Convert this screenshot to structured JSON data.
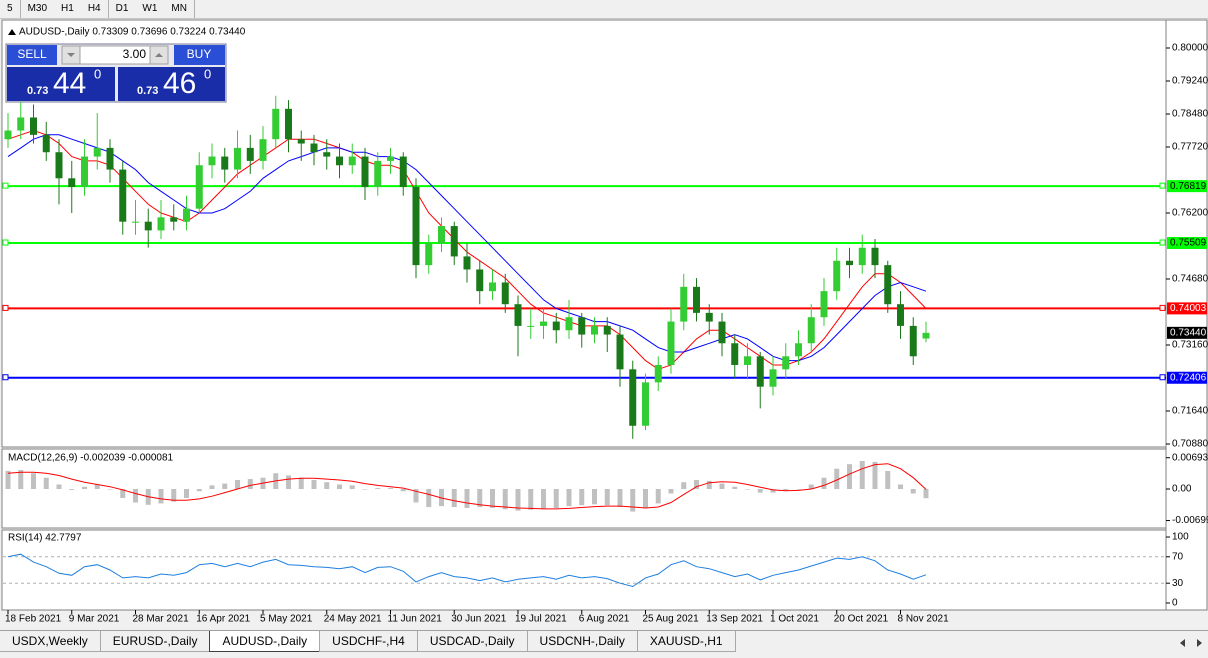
{
  "toolbar": {
    "timeframes": [
      "5",
      "M30",
      "H1",
      "H4",
      "D1",
      "W1",
      "MN"
    ]
  },
  "trade_panel": {
    "sell": "SELL",
    "buy": "BUY",
    "lots": "3.00",
    "sell_price": {
      "prefix": "0.73",
      "big": "44",
      "sup": "0"
    },
    "buy_price": {
      "prefix": "0.73",
      "big": "46",
      "sup": "0"
    }
  },
  "chart_data": [
    {
      "type": "candlestick",
      "title": "AUDUSD-,Daily 0.73309 0.73696 0.73224 0.73440",
      "categories": [
        "18 Feb 2021",
        null,
        null,
        null,
        null,
        "9 Mar 2021",
        null,
        null,
        null,
        null,
        "28 Mar 2021",
        null,
        null,
        null,
        null,
        "16 Apr 2021",
        null,
        null,
        null,
        null,
        "5 May 2021",
        null,
        null,
        null,
        null,
        "24 May 2021",
        null,
        null,
        null,
        null,
        "11 Jun 2021",
        null,
        null,
        null,
        null,
        "30 Jun 2021",
        null,
        null,
        null,
        null,
        "19 Jul 2021",
        null,
        null,
        null,
        null,
        "6 Aug 2021",
        null,
        null,
        null,
        null,
        "25 Aug 2021",
        null,
        null,
        null,
        null,
        "13 Sep 2021",
        null,
        null,
        null,
        null,
        "1 Oct 2021",
        null,
        null,
        null,
        null,
        "20 Oct 2021",
        null,
        null,
        null,
        null,
        "8 Nov 2021",
        null,
        null
      ],
      "candles": [
        [
          0.779,
          0.785,
          0.777,
          0.781
        ],
        [
          0.781,
          0.788,
          0.779,
          0.784
        ],
        [
          0.784,
          0.787,
          0.778,
          0.78
        ],
        [
          0.78,
          0.783,
          0.774,
          0.776
        ],
        [
          0.776,
          0.779,
          0.764,
          0.77
        ],
        [
          0.77,
          0.774,
          0.762,
          0.768
        ],
        [
          0.768,
          0.779,
          0.766,
          0.775
        ],
        [
          0.775,
          0.785,
          0.772,
          0.777
        ],
        [
          0.777,
          0.779,
          0.769,
          0.772
        ],
        [
          0.772,
          0.774,
          0.757,
          0.76
        ],
        [
          0.76,
          0.765,
          0.757,
          0.76
        ],
        [
          0.76,
          0.763,
          0.754,
          0.758
        ],
        [
          0.758,
          0.765,
          0.756,
          0.761
        ],
        [
          0.761,
          0.764,
          0.758,
          0.76
        ],
        [
          0.76,
          0.766,
          0.758,
          0.763
        ],
        [
          0.763,
          0.776,
          0.762,
          0.773
        ],
        [
          0.773,
          0.778,
          0.77,
          0.775
        ],
        [
          0.775,
          0.777,
          0.769,
          0.772
        ],
        [
          0.772,
          0.781,
          0.77,
          0.777
        ],
        [
          0.777,
          0.78,
          0.771,
          0.774
        ],
        [
          0.774,
          0.782,
          0.772,
          0.779
        ],
        [
          0.779,
          0.789,
          0.777,
          0.786
        ],
        [
          0.786,
          0.788,
          0.776,
          0.779
        ],
        [
          0.779,
          0.781,
          0.774,
          0.778
        ],
        [
          0.778,
          0.78,
          0.773,
          0.776
        ],
        [
          0.776,
          0.779,
          0.772,
          0.775
        ],
        [
          0.775,
          0.778,
          0.77,
          0.773
        ],
        [
          0.773,
          0.778,
          0.771,
          0.775
        ],
        [
          0.775,
          0.777,
          0.765,
          0.768
        ],
        [
          0.768,
          0.776,
          0.766,
          0.774
        ],
        [
          0.774,
          0.777,
          0.771,
          0.775
        ],
        [
          0.775,
          0.776,
          0.766,
          0.768
        ],
        [
          0.768,
          0.77,
          0.747,
          0.75
        ],
        [
          0.75,
          0.757,
          0.748,
          0.755
        ],
        [
          0.755,
          0.761,
          0.753,
          0.759
        ],
        [
          0.759,
          0.76,
          0.75,
          0.752
        ],
        [
          0.752,
          0.755,
          0.746,
          0.749
        ],
        [
          0.749,
          0.751,
          0.741,
          0.744
        ],
        [
          0.744,
          0.749,
          0.742,
          0.746
        ],
        [
          0.746,
          0.748,
          0.739,
          0.741
        ],
        [
          0.741,
          0.743,
          0.729,
          0.736
        ],
        [
          0.736,
          0.74,
          0.733,
          0.736
        ],
        [
          0.736,
          0.74,
          0.733,
          0.737
        ],
        [
          0.737,
          0.739,
          0.732,
          0.735
        ],
        [
          0.735,
          0.742,
          0.733,
          0.738
        ],
        [
          0.738,
          0.739,
          0.731,
          0.734
        ],
        [
          0.734,
          0.738,
          0.732,
          0.736
        ],
        [
          0.736,
          0.738,
          0.73,
          0.734
        ],
        [
          0.734,
          0.736,
          0.722,
          0.726
        ],
        [
          0.726,
          0.728,
          0.71,
          0.713
        ],
        [
          0.713,
          0.725,
          0.712,
          0.723
        ],
        [
          0.723,
          0.729,
          0.721,
          0.727
        ],
        [
          0.727,
          0.74,
          0.725,
          0.737
        ],
        [
          0.737,
          0.748,
          0.735,
          0.745
        ],
        [
          0.745,
          0.747,
          0.737,
          0.739
        ],
        [
          0.739,
          0.741,
          0.734,
          0.737
        ],
        [
          0.737,
          0.739,
          0.729,
          0.732
        ],
        [
          0.732,
          0.734,
          0.724,
          0.727
        ],
        [
          0.727,
          0.732,
          0.724,
          0.729
        ],
        [
          0.729,
          0.73,
          0.717,
          0.722
        ],
        [
          0.722,
          0.729,
          0.72,
          0.726
        ],
        [
          0.726,
          0.732,
          0.724,
          0.729
        ],
        [
          0.729,
          0.735,
          0.727,
          0.732
        ],
        [
          0.732,
          0.741,
          0.73,
          0.738
        ],
        [
          0.738,
          0.747,
          0.736,
          0.744
        ],
        [
          0.744,
          0.754,
          0.742,
          0.751
        ],
        [
          0.751,
          0.754,
          0.747,
          0.75
        ],
        [
          0.75,
          0.757,
          0.748,
          0.754
        ],
        [
          0.754,
          0.756,
          0.747,
          0.75
        ],
        [
          0.75,
          0.751,
          0.739,
          0.741
        ],
        [
          0.741,
          0.744,
          0.733,
          0.736
        ],
        [
          0.736,
          0.738,
          0.727,
          0.729
        ],
        [
          0.73309,
          0.73696,
          0.73224,
          0.7344
        ]
      ],
      "bull_color": "#33cc33",
      "bear_color": "#1a7a1a",
      "moving_averages": [
        {
          "color": "#ff0000",
          "values": [
            0.779,
            0.78,
            0.781,
            0.78,
            0.778,
            0.775,
            0.774,
            0.774,
            0.773,
            0.77,
            0.767,
            0.764,
            0.762,
            0.761,
            0.76,
            0.762,
            0.765,
            0.768,
            0.771,
            0.773,
            0.775,
            0.777,
            0.779,
            0.779,
            0.779,
            0.778,
            0.777,
            0.776,
            0.774,
            0.773,
            0.773,
            0.772,
            0.767,
            0.762,
            0.759,
            0.756,
            0.753,
            0.751,
            0.749,
            0.747,
            0.744,
            0.741,
            0.739,
            0.738,
            0.737,
            0.736,
            0.736,
            0.736,
            0.734,
            0.731,
            0.728,
            0.726,
            0.727,
            0.73,
            0.733,
            0.735,
            0.735,
            0.733,
            0.731,
            0.729,
            0.727,
            0.727,
            0.728,
            0.73,
            0.733,
            0.737,
            0.741,
            0.745,
            0.748,
            0.748,
            0.746,
            0.743,
            0.74
          ]
        },
        {
          "color": "#0000ff",
          "values": [
            0.775,
            0.777,
            0.779,
            0.78,
            0.78,
            0.779,
            0.778,
            0.777,
            0.776,
            0.774,
            0.772,
            0.769,
            0.767,
            0.765,
            0.763,
            0.762,
            0.762,
            0.763,
            0.765,
            0.767,
            0.77,
            0.772,
            0.774,
            0.775,
            0.776,
            0.777,
            0.777,
            0.776,
            0.776,
            0.775,
            0.775,
            0.774,
            0.772,
            0.769,
            0.766,
            0.763,
            0.76,
            0.757,
            0.754,
            0.751,
            0.748,
            0.745,
            0.742,
            0.74,
            0.739,
            0.738,
            0.737,
            0.737,
            0.736,
            0.735,
            0.733,
            0.731,
            0.73,
            0.73,
            0.731,
            0.732,
            0.733,
            0.734,
            0.733,
            0.731,
            0.729,
            0.728,
            0.728,
            0.729,
            0.731,
            0.734,
            0.737,
            0.74,
            0.743,
            0.745,
            0.746,
            0.745,
            0.744
          ]
        }
      ],
      "ylim": [
        0.70834,
        0.80599
      ],
      "yticks": [
        {
          "value": 0.8,
          "label": "0.80000"
        },
        {
          "value": 0.7924,
          "label": "0.79240"
        },
        {
          "value": 0.7848,
          "label": "0.78480"
        },
        {
          "value": 0.7772,
          "label": "0.77720"
        },
        {
          "value": 0.762,
          "label": "0.76200"
        },
        {
          "value": 0.7468,
          "label": "0.74680"
        },
        {
          "value": 0.7316,
          "label": "0.73160"
        },
        {
          "value": 0.7164,
          "label": "0.71640"
        },
        {
          "value": 0.7088,
          "label": "0.70880"
        }
      ],
      "levels": [
        {
          "value": 0.76819,
          "color": "#00ff00"
        },
        {
          "value": 0.75509,
          "color": "#00ff00"
        },
        {
          "value": 0.74003,
          "color": "#ff0000"
        },
        {
          "value": 0.72406,
          "color": "#0000ff"
        }
      ],
      "current_price": {
        "value": 0.7344,
        "label": "0.73440"
      }
    },
    {
      "type": "macd",
      "title": "MACD(12,26,9) -0.002039 -0.000081",
      "histogram": {
        "color": "#c0c0c0",
        "values": [
          0.004,
          0.0042,
          0.0035,
          0.0025,
          0.001,
          -0.0002,
          0.0005,
          0.001,
          0,
          -0.002,
          -0.003,
          -0.0035,
          -0.0032,
          -0.0028,
          -0.002,
          -0.0005,
          0.0008,
          0.0012,
          0.002,
          0.0022,
          0.0025,
          0.0035,
          0.003,
          0.0025,
          0.002,
          0.0015,
          0.001,
          0.0008,
          0,
          0.0002,
          0.0002,
          -0.0005,
          -0.003,
          -0.004,
          -0.0038,
          -0.004,
          -0.0042,
          -0.004,
          -0.0042,
          -0.0045,
          -0.0048,
          -0.0046,
          -0.0044,
          -0.0042,
          -0.0038,
          -0.0036,
          -0.0034,
          -0.0036,
          -0.004,
          -0.005,
          -0.0042,
          -0.0032,
          -0.001,
          0.0015,
          0.002,
          0.0018,
          0.0012,
          0.0005,
          0,
          -0.0008,
          -0.0008,
          -0.0004,
          0,
          0.001,
          0.0025,
          0.0045,
          0.0055,
          0.0062,
          0.006,
          0.004,
          0.001,
          -0.001,
          -0.002039
        ]
      },
      "signal": {
        "color": "#ff0000",
        "values": [
          0.0035,
          0.0037,
          0.0037,
          0.0035,
          0.003,
          0.0022,
          0.0015,
          0.001,
          0.0005,
          -0.0002,
          -0.001,
          -0.0017,
          -0.0022,
          -0.0025,
          -0.0025,
          -0.0022,
          -0.0016,
          -0.0008,
          0,
          0.0008,
          0.0013,
          0.0018,
          0.0022,
          0.0024,
          0.0024,
          0.0022,
          0.002,
          0.0017,
          0.0012,
          0.0008,
          0.0005,
          0.0002,
          -0.0005,
          -0.0012,
          -0.002,
          -0.0026,
          -0.0031,
          -0.0035,
          -0.0038,
          -0.004,
          -0.0042,
          -0.0043,
          -0.0044,
          -0.0044,
          -0.0043,
          -0.0041,
          -0.0039,
          -0.0038,
          -0.0038,
          -0.004,
          -0.0042,
          -0.004,
          -0.003,
          -0.0012,
          0.0005,
          0.0014,
          0.0016,
          0.0015,
          0.001,
          0.0004,
          -0.0002,
          -0.0004,
          -0.0003,
          0,
          0.0008,
          0.002,
          0.0033,
          0.0045,
          0.0054,
          0.0056,
          0.0045,
          0.0025,
          -8.1e-05
        ]
      },
      "ylim": [
        -0.0082,
        0.0082
      ],
      "yticks": [
        0.006934,
        {
          "value": 0,
          "label": "0.00"
        },
        -0.006991
      ]
    },
    {
      "type": "line",
      "title": "RSI(14) 42.7797",
      "color": "#1e7fe0",
      "values": [
        70,
        74,
        62,
        55,
        45,
        42,
        55,
        58,
        50,
        38,
        40,
        38,
        44,
        42,
        46,
        58,
        60,
        55,
        60,
        55,
        62,
        66,
        58,
        57,
        55,
        54,
        52,
        55,
        46,
        54,
        55,
        48,
        32,
        40,
        46,
        40,
        38,
        34,
        38,
        32,
        36,
        38,
        40,
        36,
        42,
        38,
        40,
        37,
        30,
        25,
        38,
        44,
        58,
        64,
        55,
        52,
        46,
        40,
        44,
        35,
        42,
        46,
        50,
        56,
        62,
        68,
        66,
        70,
        64,
        50,
        44,
        36,
        42.7797
      ],
      "ylim": [
        -7.6,
        107.6
      ],
      "yticks": [
        100,
        70,
        30,
        0
      ],
      "levels": [
        70,
        30
      ]
    }
  ],
  "tabs": [
    "USDX,Weekly",
    "EURUSD-,Daily",
    "AUDUSD-,Daily",
    "USDCHF-,H4",
    "USDCAD-,Daily",
    "USDCNH-,Daily",
    "XAUUSD-,H1"
  ],
  "active_tab": 2
}
